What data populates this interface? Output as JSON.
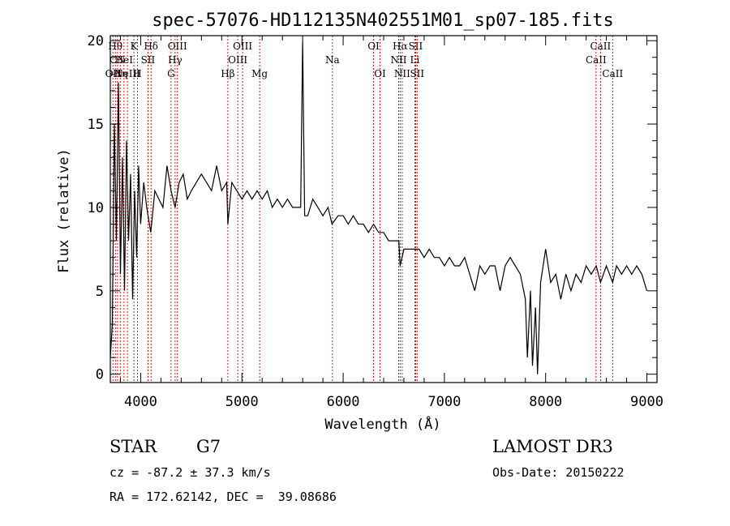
{
  "chart_data": {
    "type": "line",
    "title": "spec-57076-HD112135N402551M01_sp07-185.fits",
    "xlabel": "Wavelength (Å)",
    "ylabel": "Flux (relative)",
    "xlim": [
      3700,
      9100
    ],
    "ylim": [
      -0.5,
      20.3
    ],
    "xticks": [
      4000,
      5000,
      6000,
      7000,
      8000,
      9000
    ],
    "yticks": [
      0,
      5,
      10,
      15,
      20
    ],
    "series": [
      {
        "name": "flux",
        "x": [
          3700,
          3720,
          3740,
          3760,
          3780,
          3800,
          3820,
          3840,
          3860,
          3880,
          3900,
          3920,
          3940,
          3960,
          3980,
          4000,
          4030,
          4060,
          4100,
          4140,
          4180,
          4220,
          4260,
          4300,
          4340,
          4380,
          4420,
          4460,
          4500,
          4550,
          4600,
          4650,
          4700,
          4750,
          4800,
          4850,
          4861,
          4900,
          4950,
          5000,
          5050,
          5100,
          5150,
          5200,
          5250,
          5300,
          5350,
          5400,
          5450,
          5500,
          5550,
          5580,
          5600,
          5620,
          5650,
          5700,
          5750,
          5800,
          5850,
          5890,
          5950,
          6000,
          6050,
          6100,
          6150,
          6200,
          6250,
          6300,
          6350,
          6400,
          6450,
          6500,
          6550,
          6563,
          6600,
          6650,
          6700,
          6750,
          6800,
          6850,
          6900,
          6950,
          7000,
          7050,
          7100,
          7150,
          7200,
          7250,
          7300,
          7350,
          7400,
          7450,
          7500,
          7550,
          7600,
          7650,
          7700,
          7750,
          7800,
          7820,
          7850,
          7870,
          7900,
          7920,
          7950,
          8000,
          8050,
          8100,
          8150,
          8200,
          8250,
          8300,
          8350,
          8400,
          8450,
          8500,
          8542,
          8600,
          8662,
          8700,
          8750,
          8800,
          8850,
          8900,
          8950,
          9000
        ],
        "y": [
          1.0,
          3.0,
          15.0,
          8.0,
          17.5,
          6.0,
          13.0,
          5.0,
          14.0,
          8.0,
          12.0,
          4.5,
          11.0,
          7.0,
          12.5,
          9.0,
          11.5,
          10.0,
          8.5,
          11.0,
          10.5,
          10.0,
          12.5,
          11.0,
          10.0,
          11.5,
          12.0,
          10.5,
          11.0,
          11.5,
          12.0,
          11.5,
          11.0,
          12.5,
          11.0,
          11.5,
          9.0,
          11.5,
          11.0,
          10.5,
          11.0,
          10.5,
          11.0,
          10.5,
          11.0,
          10.0,
          10.5,
          10.0,
          10.5,
          10.0,
          10.0,
          10.0,
          20.0,
          9.5,
          9.5,
          10.5,
          10.0,
          9.5,
          10.0,
          9.0,
          9.5,
          9.5,
          9.0,
          9.5,
          9.0,
          9.0,
          8.5,
          9.0,
          8.5,
          8.5,
          8.0,
          8.0,
          8.0,
          6.5,
          7.5,
          7.5,
          7.5,
          7.5,
          7.0,
          7.5,
          7.0,
          7.0,
          6.5,
          7.0,
          6.5,
          6.5,
          7.0,
          6.0,
          5.0,
          6.5,
          6.0,
          6.5,
          6.5,
          5.0,
          6.5,
          7.0,
          6.5,
          6.0,
          4.5,
          1.0,
          5.0,
          0.5,
          4.0,
          0.0,
          5.5,
          7.5,
          5.5,
          6.0,
          4.5,
          6.0,
          5.0,
          6.0,
          5.5,
          6.5,
          6.0,
          6.5,
          5.5,
          6.5,
          5.5,
          6.5,
          6.0,
          6.5,
          6.0,
          6.5,
          6.0,
          5.0
        ]
      }
    ],
    "spectral_lines": [
      {
        "wave": 3726,
        "label": "OII",
        "row": 3
      },
      {
        "wave": 3750,
        "label": "Hθ",
        "row": 1
      },
      {
        "wave": 3771,
        "label": "CN",
        "row": 2
      },
      {
        "wave": 3798,
        "label": "Hη",
        "row": 3
      },
      {
        "wave": 3835,
        "label": "HeI",
        "row": 2
      },
      {
        "wave": 3869,
        "label": "NeIII",
        "row": 3
      },
      {
        "wave": 3933,
        "label": "K",
        "row": 1
      },
      {
        "wave": 3968,
        "label": "H",
        "row": 3
      },
      {
        "wave": 4072,
        "label": "SII",
        "row": 2
      },
      {
        "wave": 4102,
        "label": "Hδ",
        "row": 1
      },
      {
        "wave": 4300,
        "label": "G",
        "row": 3
      },
      {
        "wave": 4340,
        "label": "Hγ",
        "row": 2
      },
      {
        "wave": 4363,
        "label": "OIII",
        "row": 1
      },
      {
        "wave": 4861,
        "label": "Hβ",
        "row": 3
      },
      {
        "wave": 4959,
        "label": "OIII",
        "row": 2
      },
      {
        "wave": 5007,
        "label": "OIII",
        "row": 1
      },
      {
        "wave": 5175,
        "label": "Mg",
        "row": 3
      },
      {
        "wave": 5894,
        "label": "Na",
        "row": 2
      },
      {
        "wave": 6300,
        "label": "OI",
        "row": 1
      },
      {
        "wave": 6364,
        "label": "OI",
        "row": 3
      },
      {
        "wave": 6548,
        "label": "NII",
        "row": 2
      },
      {
        "wave": 6563,
        "label": "Hα",
        "row": 1
      },
      {
        "wave": 6583,
        "label": "NII",
        "row": 3
      },
      {
        "wave": 6708,
        "label": "Li",
        "row": 2
      },
      {
        "wave": 6716,
        "label": "SII",
        "row": 1
      },
      {
        "wave": 6731,
        "label": "SII",
        "row": 3
      },
      {
        "wave": 8498,
        "label": "CaII",
        "row": 2
      },
      {
        "wave": 8542,
        "label": "CaII",
        "row": 1
      },
      {
        "wave": 8662,
        "label": "CaII",
        "row": 3
      }
    ]
  },
  "info": {
    "class": "STAR",
    "subclass": "G7",
    "survey": "LAMOST DR3",
    "redshift": "cz = -87.2 ± 37.3 km/s",
    "obs_date": "Obs-Date: 20150222",
    "coords": "RA = 172.62142, DEC =  39.08686"
  }
}
